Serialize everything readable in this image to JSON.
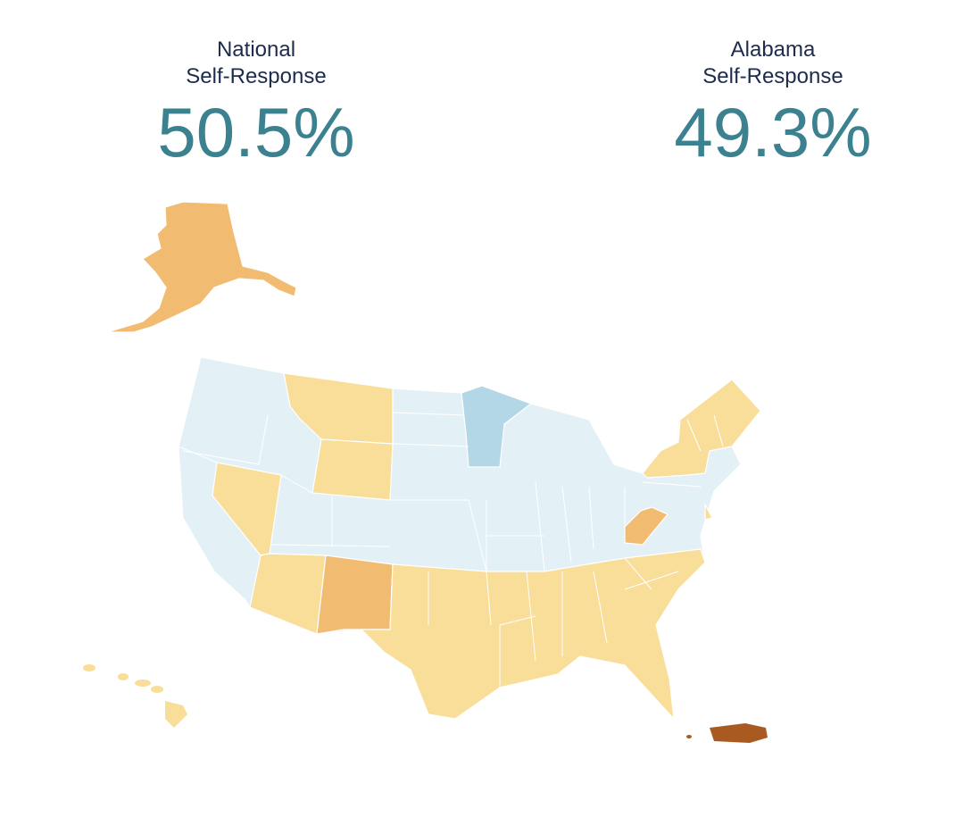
{
  "national": {
    "label_lines": [
      "National",
      "Self-Response"
    ],
    "rate": "50.5%"
  },
  "state": {
    "label_lines": [
      "Alabama",
      "Self-Response"
    ],
    "rate": "49.3%"
  }
}
